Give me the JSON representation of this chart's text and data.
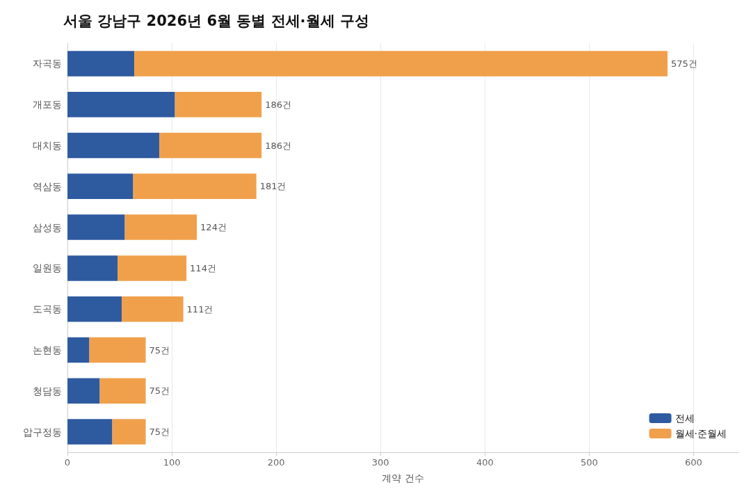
{
  "chart_data": {
    "type": "bar",
    "title": "서울 강남구 2026년 6월 동별 전세·월세 구성",
    "xlabel": "계약 건수",
    "orientation": "horizontal",
    "stacked": true,
    "categories": [
      "자곡동",
      "개포동",
      "대치동",
      "역삼동",
      "삼성동",
      "일원동",
      "도곡동",
      "논현동",
      "청담동",
      "압구정동"
    ],
    "series": [
      {
        "name": "전세",
        "color": "#2e5aa0",
        "values": [
          64,
          103,
          88,
          63,
          55,
          48,
          52,
          21,
          31,
          43
        ]
      },
      {
        "name": "월세·준월세",
        "color": "#f0a04b",
        "values": [
          511,
          83,
          98,
          118,
          69,
          66,
          59,
          54,
          44,
          32
        ]
      }
    ],
    "totals": [
      "575건",
      "186건",
      "186건",
      "181건",
      "124건",
      "114건",
      "111건",
      "75건",
      "75건",
      "75건"
    ],
    "xlim": [
      0,
      643
    ],
    "xticks": [
      0,
      100,
      200,
      300,
      400,
      500,
      600
    ],
    "grid": "x",
    "legend": "bottom right"
  }
}
